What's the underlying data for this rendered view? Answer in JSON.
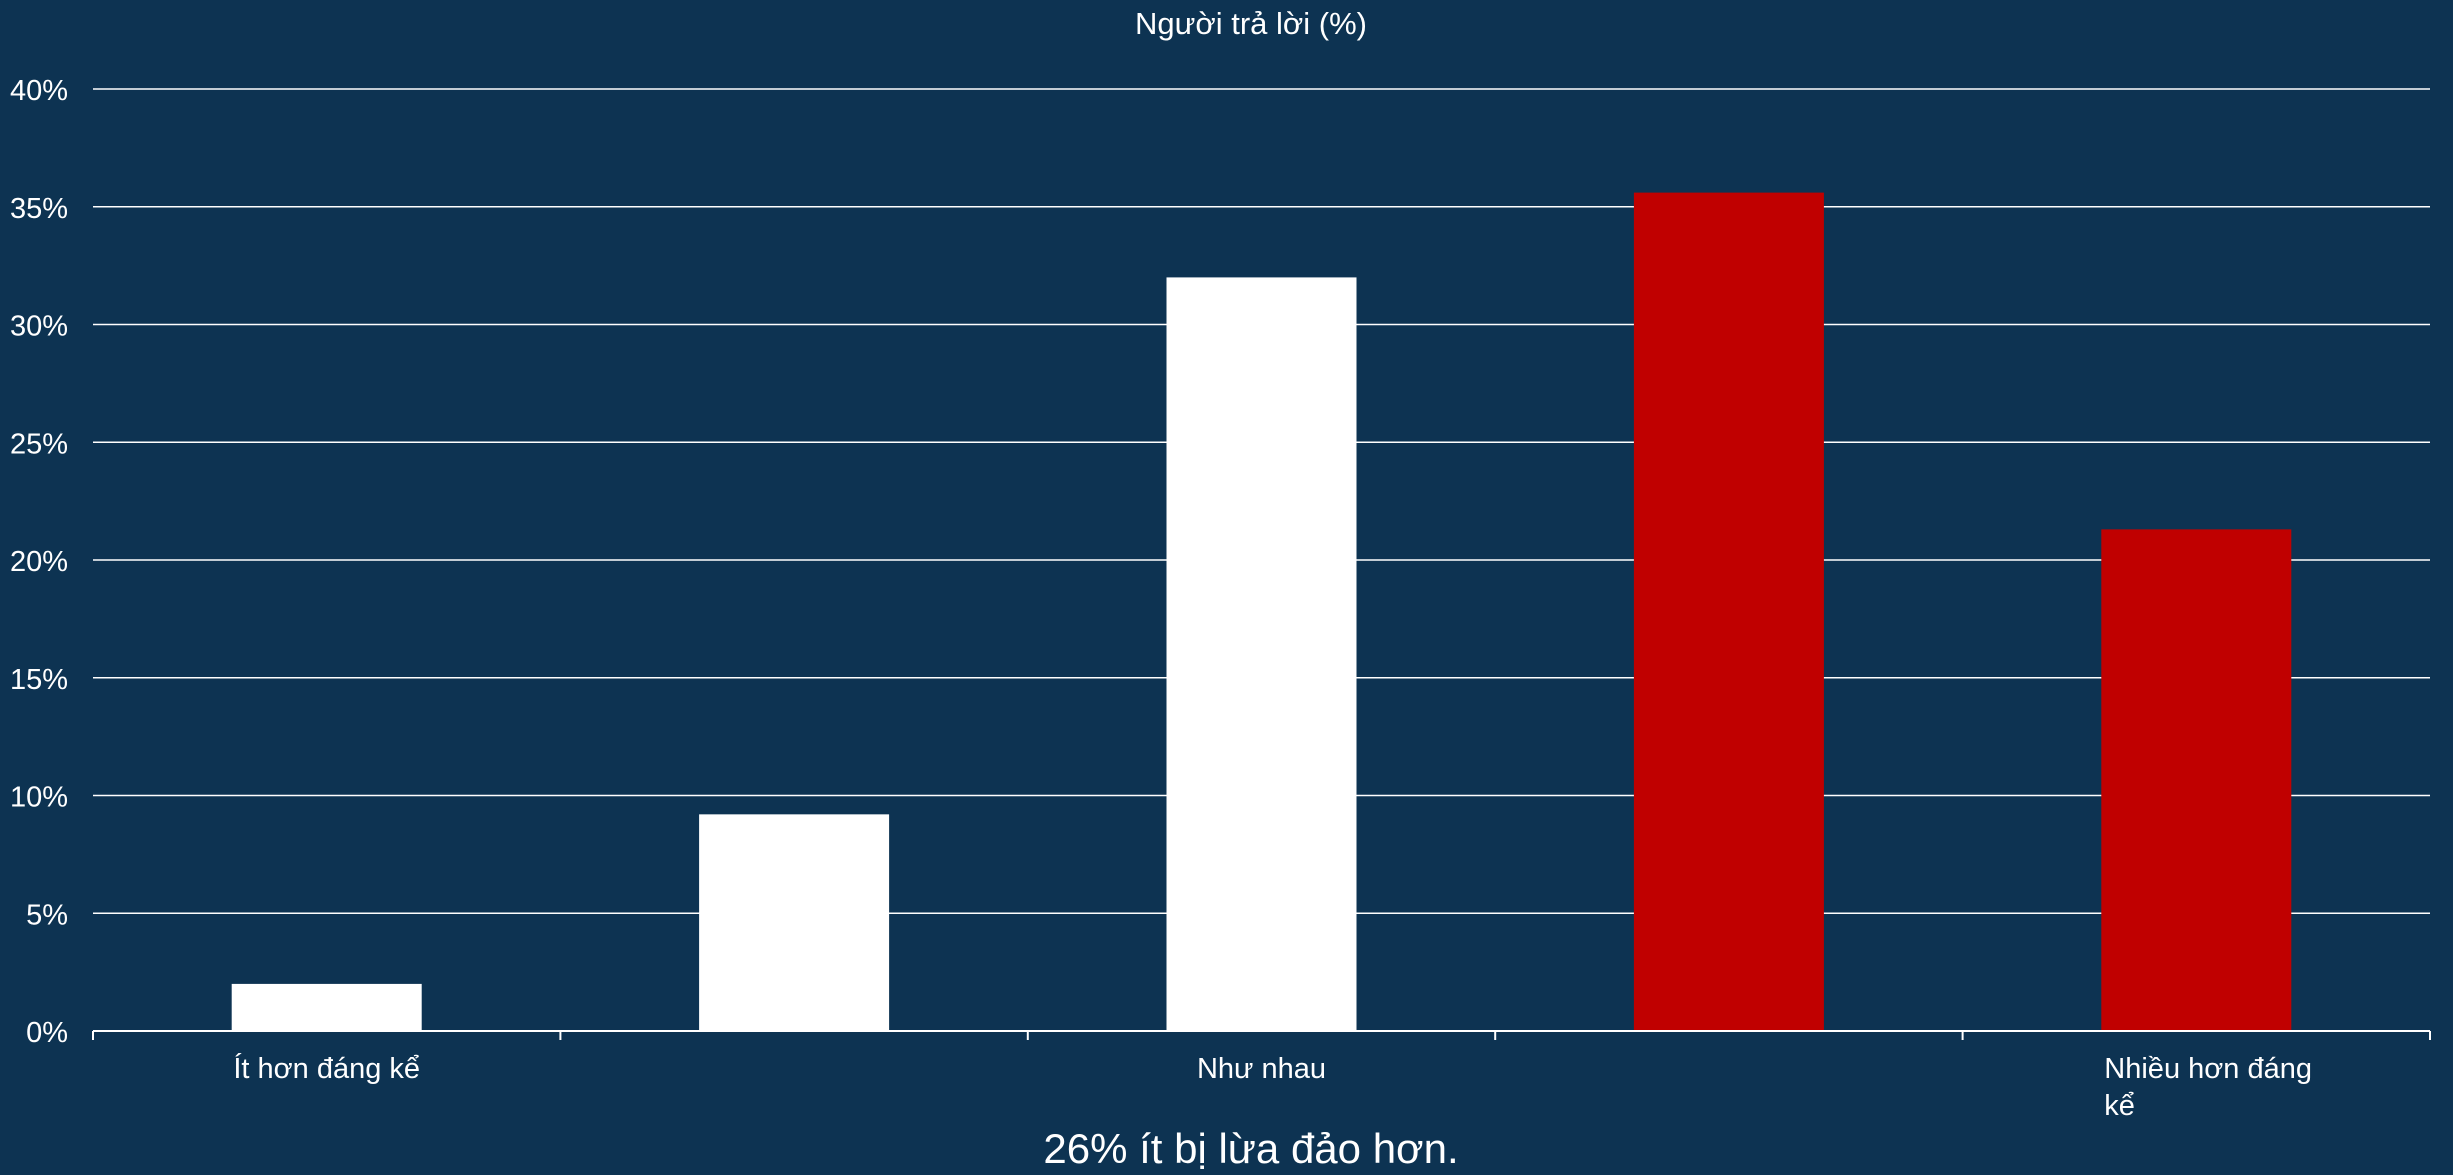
{
  "chart_data": {
    "type": "bar",
    "title": "Người trả lời (%)",
    "caption": "26% ít bị lừa đảo hơn.",
    "categories": [
      "Ít hơn đáng kể",
      "",
      "Như nhau",
      "",
      "Nhiều hơn đáng kể"
    ],
    "values": [
      2,
      9.2,
      32,
      35.6,
      21.3
    ],
    "bar_colors": [
      "#ffffff",
      "#ffffff",
      "#ffffff",
      "#c00000",
      "#c00000"
    ],
    "ylim": [
      0,
      40
    ],
    "yticks": [
      "0%",
      "5%",
      "10%",
      "15%",
      "20%",
      "25%",
      "30%",
      "35%",
      "40%"
    ],
    "grid": true,
    "background": "#0d3352",
    "gridline_color": "#ffffff"
  }
}
